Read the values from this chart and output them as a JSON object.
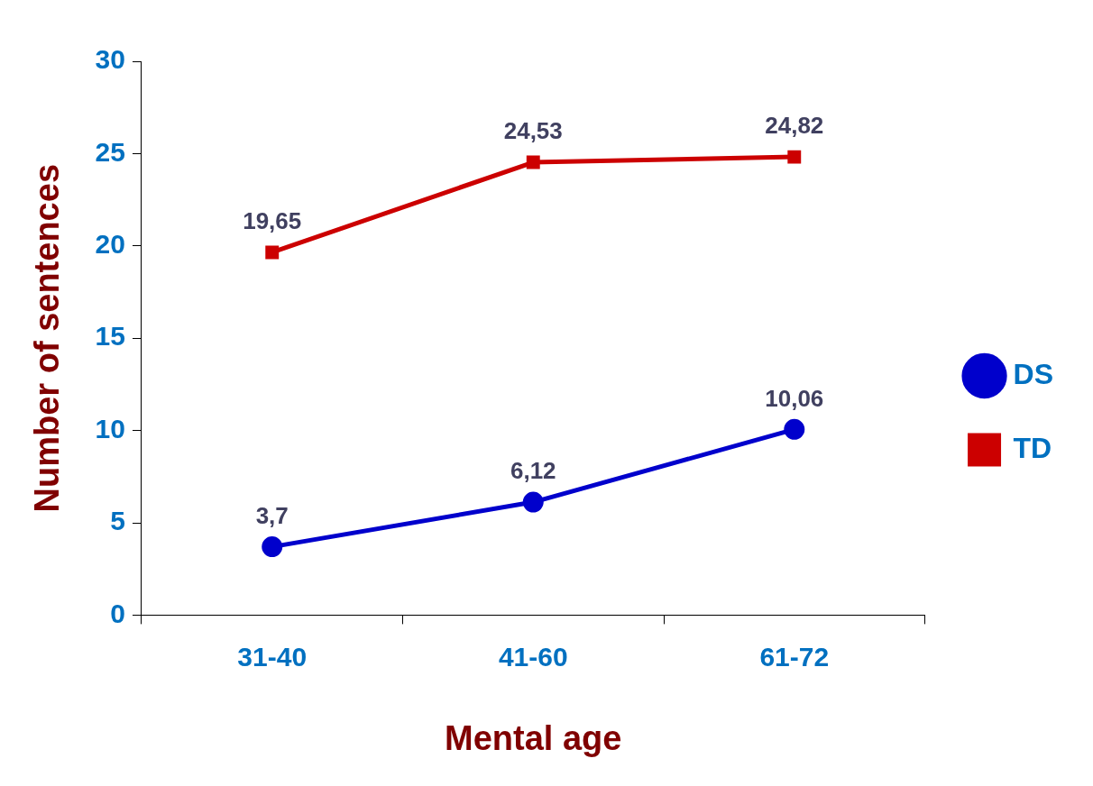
{
  "chart_data": {
    "type": "line",
    "xlabel": "Mental age",
    "ylabel": "Number of sentences",
    "categories": [
      "31-40",
      "41-60",
      "61-72"
    ],
    "series": [
      {
        "name": "DS",
        "color": "#0000cc",
        "marker": "circle",
        "values": [
          3.7,
          6.12,
          10.06
        ],
        "value_labels": [
          "3,7",
          "6,12",
          "10,06"
        ]
      },
      {
        "name": "TD",
        "color": "#cc0000",
        "marker": "square",
        "values": [
          19.65,
          24.53,
          24.82
        ],
        "value_labels": [
          "19,65",
          "24,53",
          "24,82"
        ]
      }
    ],
    "ylim": [
      0,
      30
    ],
    "yticks": [
      0,
      5,
      10,
      15,
      20,
      25,
      30
    ],
    "grid": false,
    "legend": "right",
    "line_style": "solid"
  }
}
